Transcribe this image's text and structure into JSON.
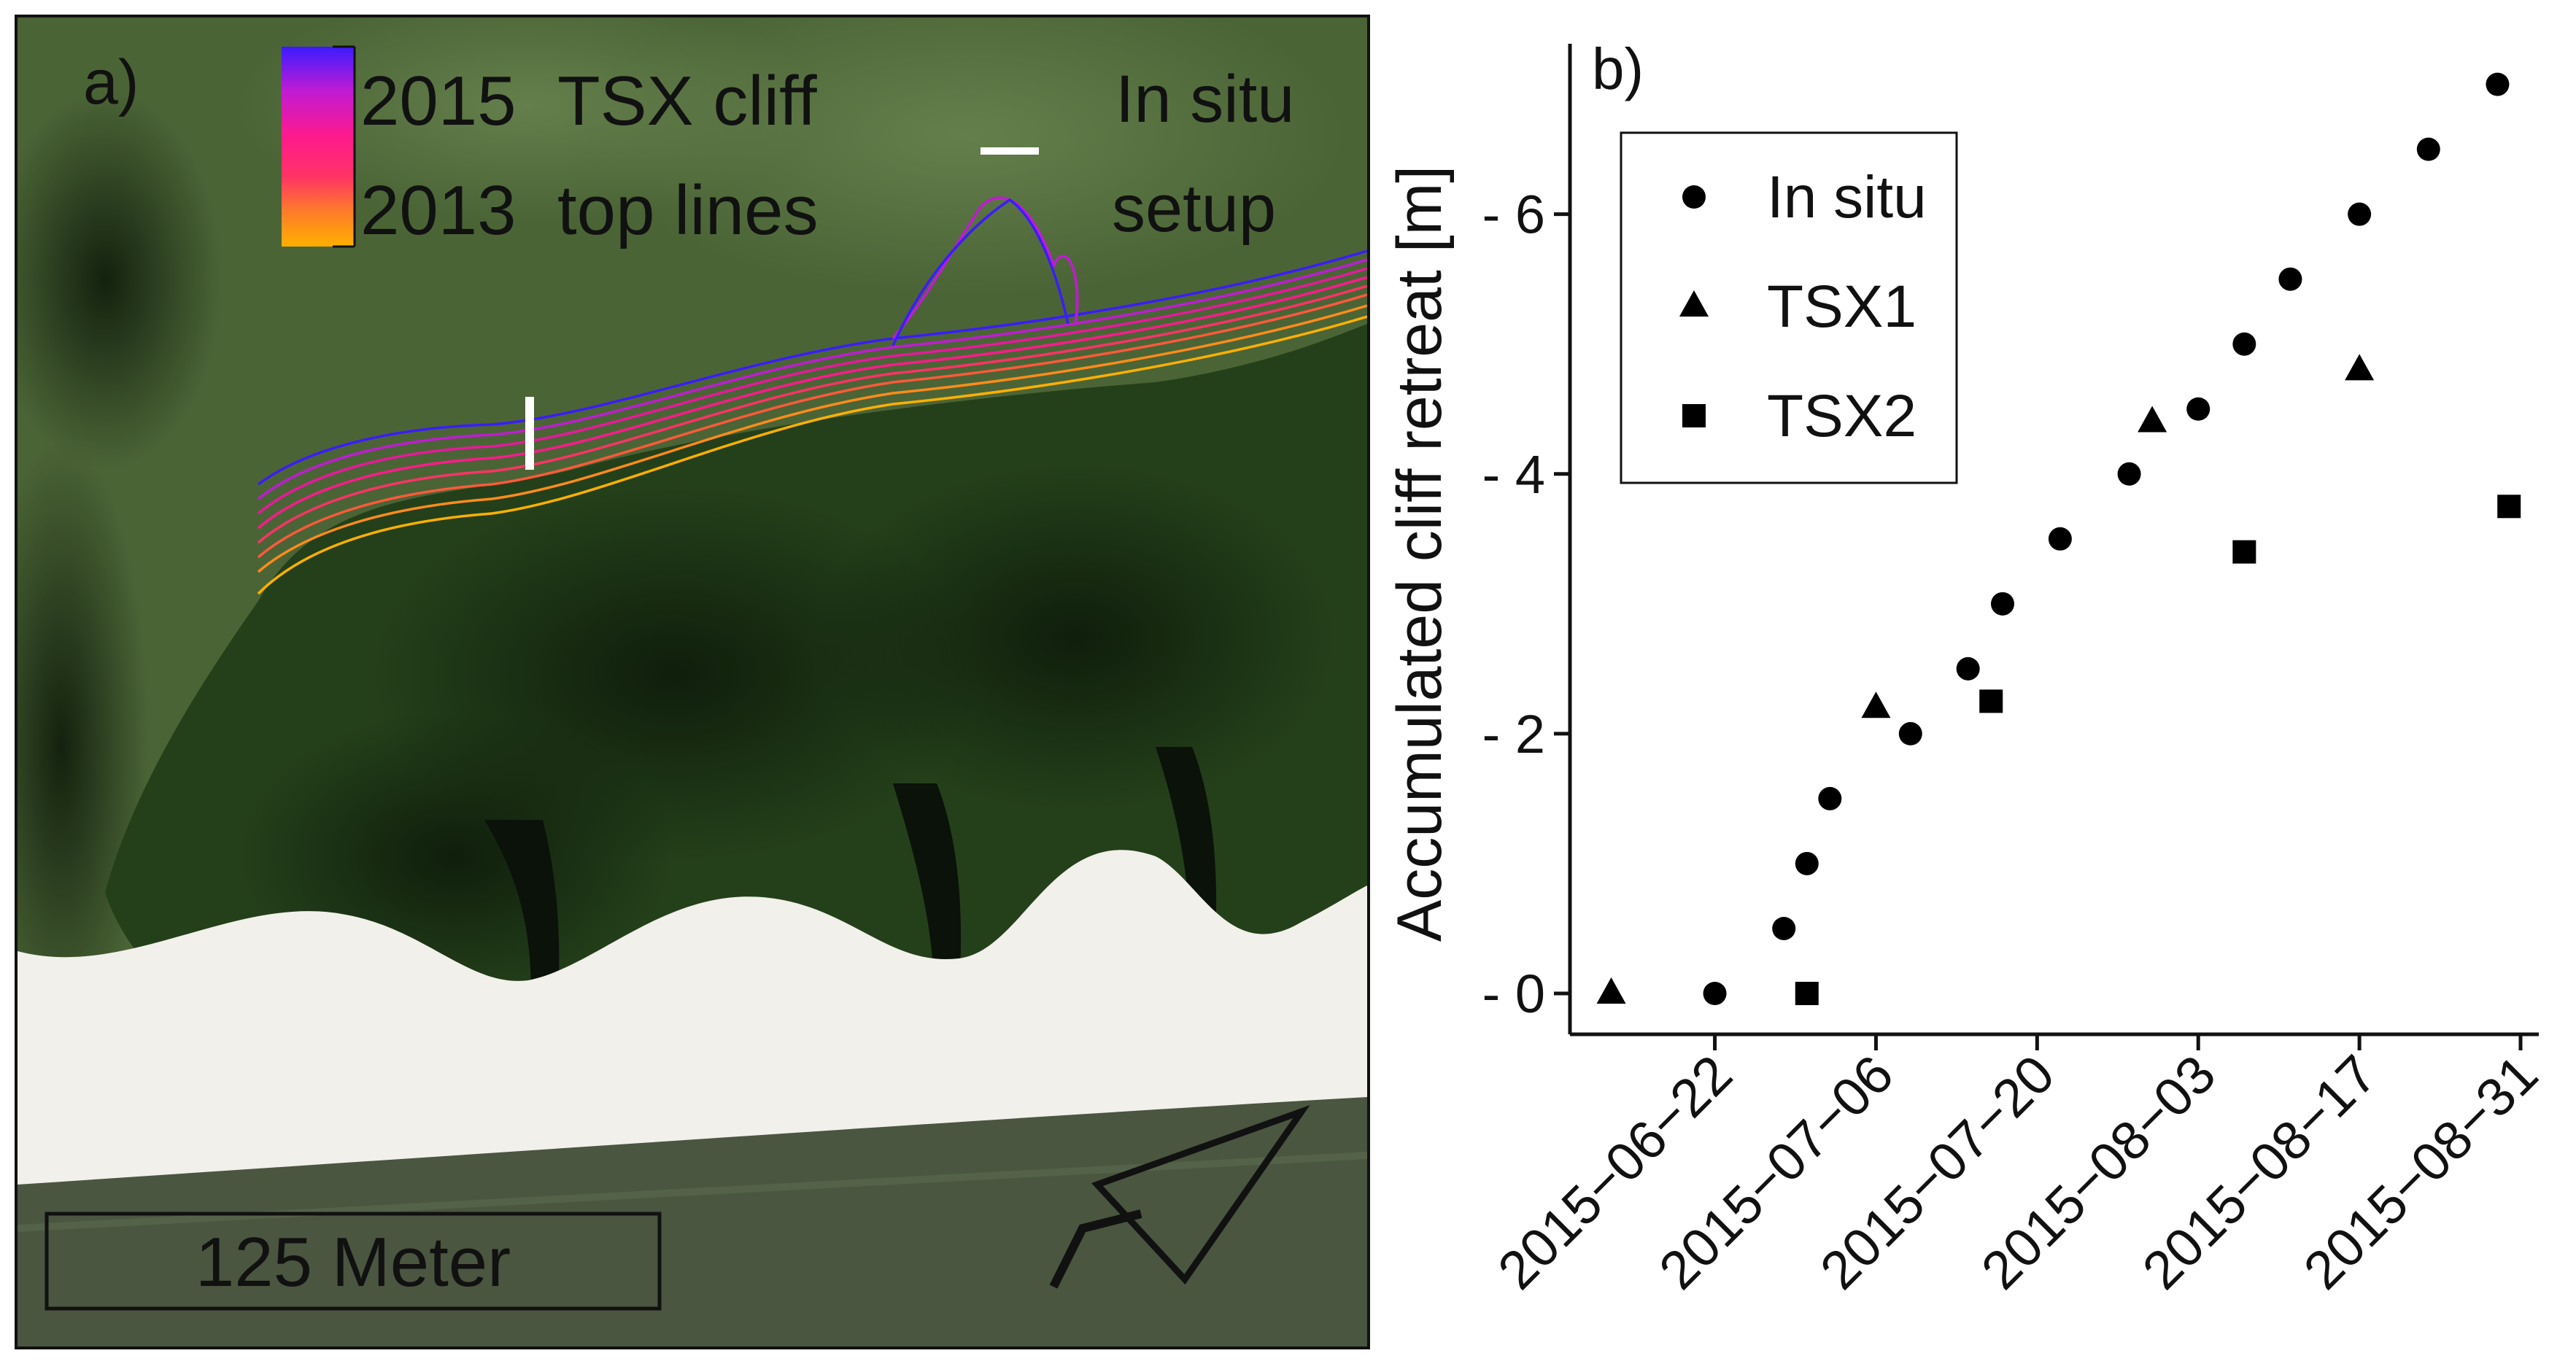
{
  "panel_a": {
    "label": "a)",
    "legend": {
      "top_year": "2015",
      "bottom_year": "2013",
      "line1": "TSX cliff",
      "line2": "top lines",
      "gradient": [
        "#3b1cff",
        "#c01bd4",
        "#ff1a8c",
        "#ff3366",
        "#ff7a2a",
        "#ffb000"
      ]
    },
    "insitu_label_1": "In situ",
    "insitu_label_2": "setup",
    "scale_bar": "125 Meter",
    "north_arrow": "N",
    "colors": {
      "vegetation": "#3f5a2c",
      "forest": "#1d3515",
      "beach": "#f2f0ea",
      "water": "#4a5640"
    }
  },
  "chart_data": {
    "type": "scatter",
    "panel_label": "b)",
    "ylabel": "Accumulated cliff retreat [m]",
    "xlabel": "",
    "x_ticks": [
      "2015−06−22",
      "2015−07−06",
      "2015−07−20",
      "2015−08−03",
      "2015−08−17",
      "2015−08−31"
    ],
    "y_ticks": [
      "- 0",
      "- 2",
      "- 4",
      "- 6"
    ],
    "y_tick_values": [
      0,
      2,
      4,
      6
    ],
    "xlim": [
      "2015-06-11",
      "2015-08-31"
    ],
    "ylim": [
      0,
      7.2
    ],
    "legend_position": "top-left",
    "series": [
      {
        "name": "In situ",
        "marker": "circle",
        "points": [
          {
            "x": "2015-06-22",
            "y": 0
          },
          {
            "x": "2015-06-28",
            "y": 0.5
          },
          {
            "x": "2015-06-30",
            "y": 1
          },
          {
            "x": "2015-07-02",
            "y": 1.5
          },
          {
            "x": "2015-07-09",
            "y": 2
          },
          {
            "x": "2015-07-14",
            "y": 2.5
          },
          {
            "x": "2015-07-17",
            "y": 3
          },
          {
            "x": "2015-07-22",
            "y": 3.5
          },
          {
            "x": "2015-07-28",
            "y": 4
          },
          {
            "x": "2015-08-03",
            "y": 4.5
          },
          {
            "x": "2015-08-07",
            "y": 5
          },
          {
            "x": "2015-08-11",
            "y": 5.5
          },
          {
            "x": "2015-08-17",
            "y": 6
          },
          {
            "x": "2015-08-23",
            "y": 6.5
          },
          {
            "x": "2015-08-29",
            "y": 7
          }
        ]
      },
      {
        "name": "TSX1",
        "marker": "triangle",
        "points": [
          {
            "x": "2015-06-13",
            "y": 0
          },
          {
            "x": "2015-07-06",
            "y": 2.2
          },
          {
            "x": "2015-07-30",
            "y": 4.4
          },
          {
            "x": "2015-08-17",
            "y": 4.8
          }
        ]
      },
      {
        "name": "TSX2",
        "marker": "square",
        "points": [
          {
            "x": "2015-06-30",
            "y": 0
          },
          {
            "x": "2015-07-16",
            "y": 2.25
          },
          {
            "x": "2015-08-07",
            "y": 3.4
          },
          {
            "x": "2015-08-30",
            "y": 3.75
          }
        ]
      }
    ]
  }
}
